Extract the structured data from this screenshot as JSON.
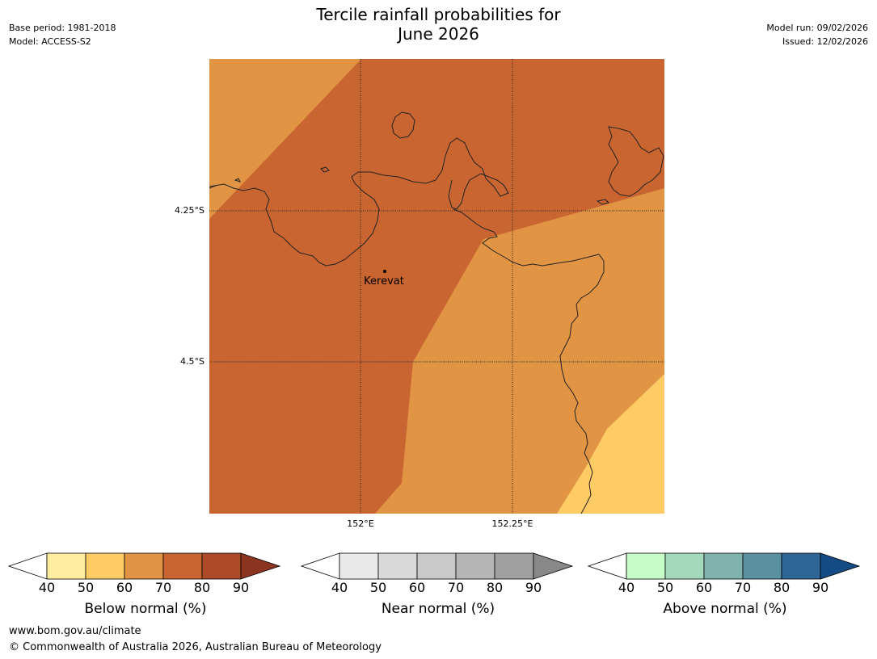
{
  "header": {
    "title_line1": "Tercile rainfall probabilities for",
    "title_line2": "June 2026",
    "base_period": "Base period: 1981-2018",
    "model": "Model: ACCESS-S2",
    "model_run": "Model run: 09/02/2026",
    "issued": "Issued: 12/02/2026"
  },
  "map": {
    "place_label": "Kerevat",
    "lat_labels": [
      "4.25°S",
      "4.5°S"
    ],
    "lon_labels": [
      "152°E",
      "152.25°E"
    ]
  },
  "colorbars": [
    {
      "title": "Below normal (%)",
      "ticks": [
        "40",
        "50",
        "60",
        "70",
        "80",
        "90"
      ],
      "colors": [
        "#ffeda0",
        "#fecb65",
        "#e09444",
        "#c96531",
        "#ad4b29",
        "#8b3420"
      ]
    },
    {
      "title": "Near normal (%)",
      "ticks": [
        "40",
        "50",
        "60",
        "70",
        "80",
        "90"
      ],
      "colors": [
        "#e8e8e8",
        "#d9d9d9",
        "#c9c9c9",
        "#b5b5b5",
        "#a0a0a0",
        "#888888"
      ]
    },
    {
      "title": "Above normal (%)",
      "ticks": [
        "40",
        "50",
        "60",
        "70",
        "80",
        "90"
      ],
      "colors": [
        "#c7fcc9",
        "#a5d9bb",
        "#80b3ae",
        "#5a91a0",
        "#2f6697",
        "#154b85"
      ]
    }
  ],
  "colors": {
    "zone_below_70": "#c96531",
    "zone_below_60": "#e09444",
    "zone_below_50": "#fecb65",
    "coastline": "#222222"
  },
  "footer": {
    "url": "www.bom.gov.au/climate",
    "copyright": "© Commonwealth of Australia 2026, Australian Bureau of Meteorology"
  }
}
